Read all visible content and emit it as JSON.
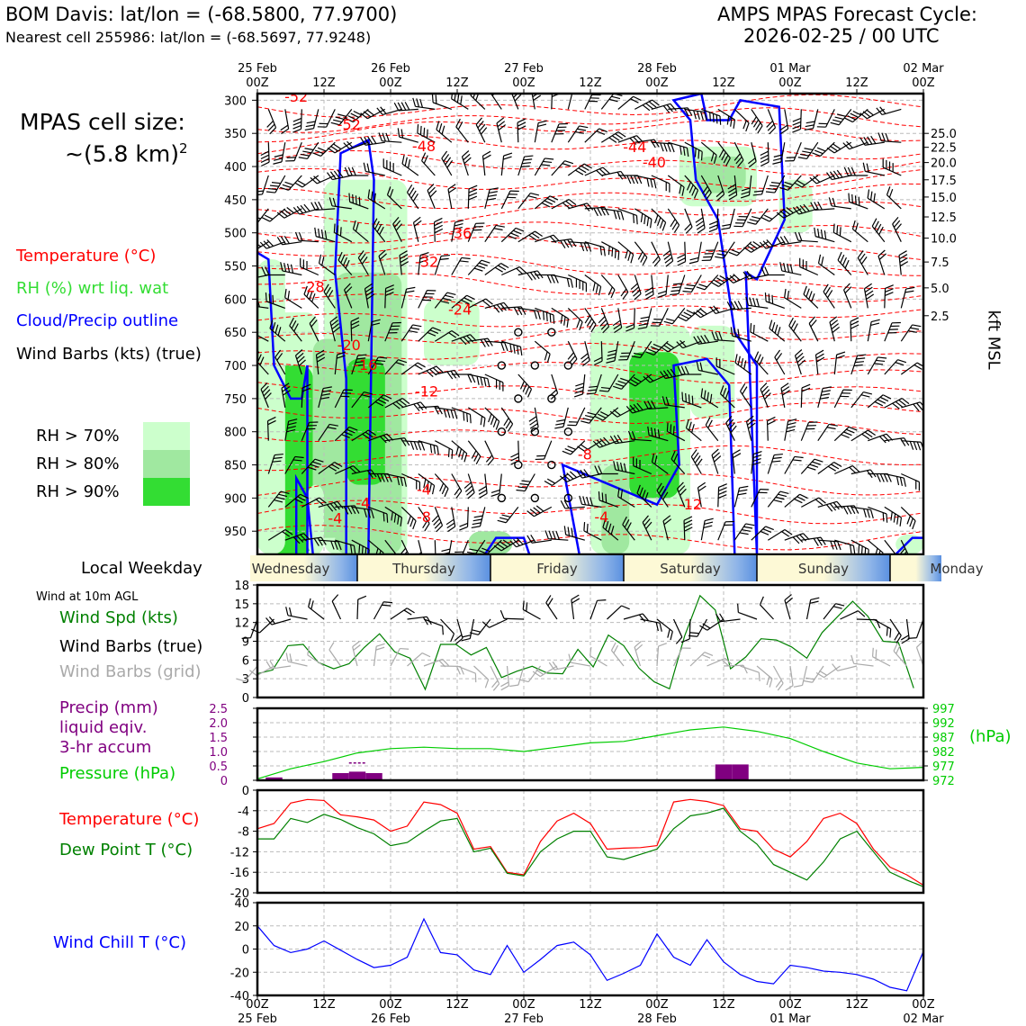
{
  "header": {
    "station_title": "BOM Davis: lat/lon = (-68.5800, 77.9700)",
    "nearest_cell": "Nearest cell 255986: lat/lon = (-68.5697, 77.9248)",
    "forecast_title": "AMPS MPAS Forecast Cycle:",
    "forecast_cycle": "2026-02-25 / 00 UTC"
  },
  "cell_size": {
    "label": "MPAS cell size:",
    "value": "~(5.8 km)",
    "superscript": "2"
  },
  "legend_main": {
    "temperature": "Temperature (°C)",
    "rh": "RH (%) wrt liq. wat",
    "cloud": "Cloud/Precip outline",
    "wind": "Wind Barbs (kts) (true)",
    "rh_levels": [
      "RH > 70%",
      "RH > 80%",
      "RH > 90%"
    ]
  },
  "weekday_label": "Local Weekday",
  "colors": {
    "temperature": "#ff0000",
    "rh": "#33dd33",
    "cloud": "#0000ff",
    "rh70": "#ccffcc",
    "rh80": "#a0e8a0",
    "rh90": "#33dd33",
    "precip": "#800080",
    "pressure": "#00cc00",
    "dewpoint": "#008000",
    "windspd": "#008000",
    "windchill": "#0000ff",
    "grid_barb": "#aaaaaa"
  },
  "chart_data": [
    {
      "type": "heatmap",
      "title": "Time-height cross section",
      "top_time_labels": [
        [
          "25 Feb",
          "00Z"
        ],
        [
          "",
          "12Z"
        ],
        [
          "26 Feb",
          "00Z"
        ],
        [
          "",
          "12Z"
        ],
        [
          "27 Feb",
          "00Z"
        ],
        [
          "",
          "12Z"
        ],
        [
          "28 Feb",
          "00Z"
        ],
        [
          "",
          "12Z"
        ],
        [
          "01 Mar",
          "00Z"
        ],
        [
          "",
          "12Z"
        ],
        [
          "02 Mar",
          "00Z"
        ]
      ],
      "pressure_levels": [
        300,
        350,
        400,
        450,
        500,
        550,
        600,
        650,
        700,
        750,
        800,
        850,
        900,
        950
      ],
      "ylim": [
        985,
        290
      ],
      "ylabel_right": "kft MSL",
      "kft_ticks": [
        {
          "label": "25.0",
          "p": 350
        },
        {
          "label": "22.5",
          "p": 371
        },
        {
          "label": "20.0",
          "p": 394
        },
        {
          "label": "17.5",
          "p": 420
        },
        {
          "label": "15.0",
          "p": 446
        },
        {
          "label": "12.5",
          "p": 476
        },
        {
          "label": "10.0",
          "p": 508
        },
        {
          "label": "7.5",
          "p": 544
        },
        {
          "label": "5.0",
          "p": 583
        },
        {
          "label": "2.5",
          "p": 625
        }
      ],
      "temperature_contour_labels": [
        {
          "text": "-52",
          "t": 7,
          "p": 302
        },
        {
          "text": "-52",
          "t": 16.5,
          "p": 344
        },
        {
          "text": "-48",
          "t": 30,
          "p": 377
        },
        {
          "text": "-44",
          "t": 68,
          "p": 378
        },
        {
          "text": "-40",
          "t": 71.5,
          "p": 401
        },
        {
          "text": "-36",
          "t": 36.5,
          "p": 508
        },
        {
          "text": "-32",
          "t": 30.5,
          "p": 551
        },
        {
          "text": "-28",
          "t": 10,
          "p": 589
        },
        {
          "text": "-24",
          "t": 36.5,
          "p": 623
        },
        {
          "text": "-20",
          "t": 16.5,
          "p": 677
        },
        {
          "text": "-16",
          "t": 19.5,
          "p": 707
        },
        {
          "text": "-12",
          "t": 30.5,
          "p": 747
        },
        {
          "text": "-8",
          "t": 59,
          "p": 842
        },
        {
          "text": "-4",
          "t": 30,
          "p": 895
        },
        {
          "text": "-4",
          "t": 19,
          "p": 915
        },
        {
          "text": "-8",
          "t": 30,
          "p": 936
        },
        {
          "text": "-4",
          "t": 14,
          "p": 938
        },
        {
          "text": "-4",
          "t": 62,
          "p": 936
        },
        {
          "text": "-12",
          "t": 78,
          "p": 917
        },
        {
          "text": "-56",
          "t": 59,
          "p": 289
        }
      ],
      "cloud_outline": "blue contours enclosing cloud/precip regions",
      "rh_shading": ">70%, >80%, >90%"
    },
    {
      "type": "line",
      "title": "Wind at 10m AGL",
      "series": [
        {
          "name": "Wind Spd (kts)",
          "values": [
            3.8,
            4.4,
            8.3,
            8.5,
            5.6,
            4.6,
            5.4,
            8.0,
            10.2,
            7.3,
            6.3,
            1.3,
            8.5,
            8.5,
            6.8,
            8.0,
            3.2,
            4.2,
            5.0,
            3.9,
            3.8,
            7.7,
            4.9,
            10.0,
            8.3,
            4.7,
            2.5,
            1.4,
            9.9,
            16.3,
            14.0,
            4.6,
            6.5,
            9.4,
            9.2,
            8.1,
            6.3,
            10.4,
            12.9,
            15.4,
            13.0,
            9.0,
            8.8,
            1.5
          ]
        }
      ],
      "x_hours_step": 3.5,
      "ylim": [
        0,
        18
      ],
      "yticks": [
        0,
        3,
        6,
        9,
        12,
        15,
        18
      ]
    },
    {
      "type": "bar",
      "title": "Precip (mm) liquid eqiv. 3-hr accum / Pressure (hPa)",
      "precip_bars": [
        {
          "hour": 3,
          "value": 0.1
        },
        {
          "hour": 15,
          "value": 0.25
        },
        {
          "hour": 18,
          "value": 0.3
        },
        {
          "hour": 21,
          "value": 0.25
        },
        {
          "hour": 84,
          "value": 0.55
        },
        {
          "hour": 87,
          "value": 0.55
        }
      ],
      "precip_dashed": {
        "hour": 18,
        "value": 0.6
      },
      "precip_ylim": [
        0,
        2.5
      ],
      "precip_ticks": [
        0,
        0.5,
        1.0,
        1.5,
        2.0,
        2.5
      ],
      "pressure_series": {
        "hours": [
          0,
          6,
          12,
          18,
          24,
          30,
          36,
          42,
          48,
          54,
          60,
          66,
          72,
          78,
          84,
          90,
          96,
          102,
          108,
          114,
          120
        ],
        "values": [
          972.5,
          976,
          978.5,
          981.5,
          983,
          983.5,
          983,
          983,
          982,
          983.5,
          985,
          985.5,
          987.5,
          989.5,
          990.5,
          989,
          986.5,
          982,
          978,
          976,
          976.5
        ]
      },
      "pressure_ylim": [
        972,
        997
      ],
      "pressure_ticks": [
        972,
        977,
        982,
        987,
        992,
        997
      ],
      "pressure_unit": "(hPa)"
    },
    {
      "type": "line",
      "title": "Temperature / Dew Point T",
      "hours": [
        0,
        3,
        6,
        9,
        12,
        15,
        18,
        21,
        24,
        27,
        30,
        33,
        36,
        39,
        42,
        45,
        48,
        51,
        54,
        57,
        60,
        63,
        66,
        69,
        72,
        75,
        78,
        81,
        84,
        87,
        90,
        93,
        96,
        99,
        102,
        105,
        108,
        111,
        114,
        117,
        120
      ],
      "series": [
        {
          "name": "Temperature (°C)",
          "values": [
            -7.5,
            -6.5,
            -2.5,
            -1.8,
            -2.0,
            -4.8,
            -5.2,
            -5.8,
            -8.0,
            -7.0,
            -2.3,
            -2.8,
            -4.5,
            -11.5,
            -11.0,
            -16.0,
            -16.5,
            -10.0,
            -6.0,
            -4.5,
            -6.5,
            -11.5,
            -11.3,
            -11.2,
            -10.8,
            -2.3,
            -1.8,
            -2.2,
            -3.0,
            -7.5,
            -8.0,
            -11.5,
            -13.0,
            -10.0,
            -5.5,
            -4.5,
            -6.5,
            -11.5,
            -15.0,
            -16.5,
            -18.5
          ]
        },
        {
          "name": "Dew Point T (°C)",
          "values": [
            -9.5,
            -9.5,
            -5.5,
            -6.3,
            -4.7,
            -5.7,
            -7.3,
            -8.5,
            -10.8,
            -10.2,
            -8.0,
            -6.0,
            -5.5,
            -12.0,
            -11.3,
            -16.2,
            -16.7,
            -12.0,
            -9.5,
            -8.0,
            -8.0,
            -13.0,
            -13.5,
            -12.5,
            -11.5,
            -7.5,
            -5.0,
            -4.5,
            -3.5,
            -8.0,
            -10.5,
            -14.5,
            -16.0,
            -17.5,
            -14.0,
            -9.5,
            -8.0,
            -12.0,
            -16.0,
            -17.5,
            -18.8
          ]
        }
      ],
      "ylim": [
        -20,
        0
      ],
      "yticks": [
        0,
        -4,
        -8,
        -12,
        -16,
        -20
      ]
    },
    {
      "type": "line",
      "title": "Wind Chill T (°C)",
      "hours": [
        0,
        3,
        6,
        9,
        12,
        15,
        18,
        21,
        24,
        27,
        30,
        33,
        36,
        39,
        42,
        45,
        48,
        51,
        54,
        57,
        60,
        63,
        66,
        69,
        72,
        75,
        78,
        81,
        84,
        87,
        90,
        93,
        96,
        99,
        102,
        105,
        108,
        111,
        114,
        117,
        120
      ],
      "series": [
        {
          "name": "Wind Chill T (°C)",
          "values": [
            20,
            3,
            -3,
            0,
            7,
            -1,
            -9,
            -16,
            -14,
            -7,
            26,
            -3,
            -5,
            -18,
            -22,
            3,
            -20,
            -9,
            3,
            6,
            -5,
            -27,
            -21,
            -14,
            13,
            -7,
            -14,
            8,
            -11,
            -22,
            -28,
            -30,
            -14,
            -16,
            -19,
            -20,
            -22,
            -26,
            -33,
            -36,
            -2
          ]
        }
      ],
      "ylim": [
        -40,
        40
      ],
      "yticks": [
        40,
        20,
        0,
        -20,
        -40
      ]
    }
  ],
  "weekdays": [
    "Wednesday",
    "Thursday",
    "Friday",
    "Saturday",
    "Sunday",
    "Monday"
  ],
  "legend_lower": {
    "wind_note": "Wind at 10m AGL",
    "wind_spd": "Wind Spd (kts)",
    "wind_barbs_true": "Wind Barbs (true)",
    "wind_barbs_grid": "Wind Barbs (grid)",
    "precip_line1": "Precip (mm)",
    "precip_line2": "liquid eqiv.",
    "precip_line3": "3-hr accum",
    "pressure": "Pressure (hPa)",
    "temperature": "Temperature (°C)",
    "dewpoint": "Dew Point T (°C)",
    "windchill": "Wind Chill T (°C)"
  },
  "bottom_axis": [
    [
      "00Z",
      "25 Feb"
    ],
    [
      "12Z",
      ""
    ],
    [
      "00Z",
      "26 Feb"
    ],
    [
      "12Z",
      ""
    ],
    [
      "00Z",
      "27 Feb"
    ],
    [
      "12Z",
      ""
    ],
    [
      "00Z",
      "28 Feb"
    ],
    [
      "12Z",
      ""
    ],
    [
      "00Z",
      "01 Mar"
    ],
    [
      "12Z",
      ""
    ],
    [
      "00Z",
      "02 Mar"
    ]
  ]
}
